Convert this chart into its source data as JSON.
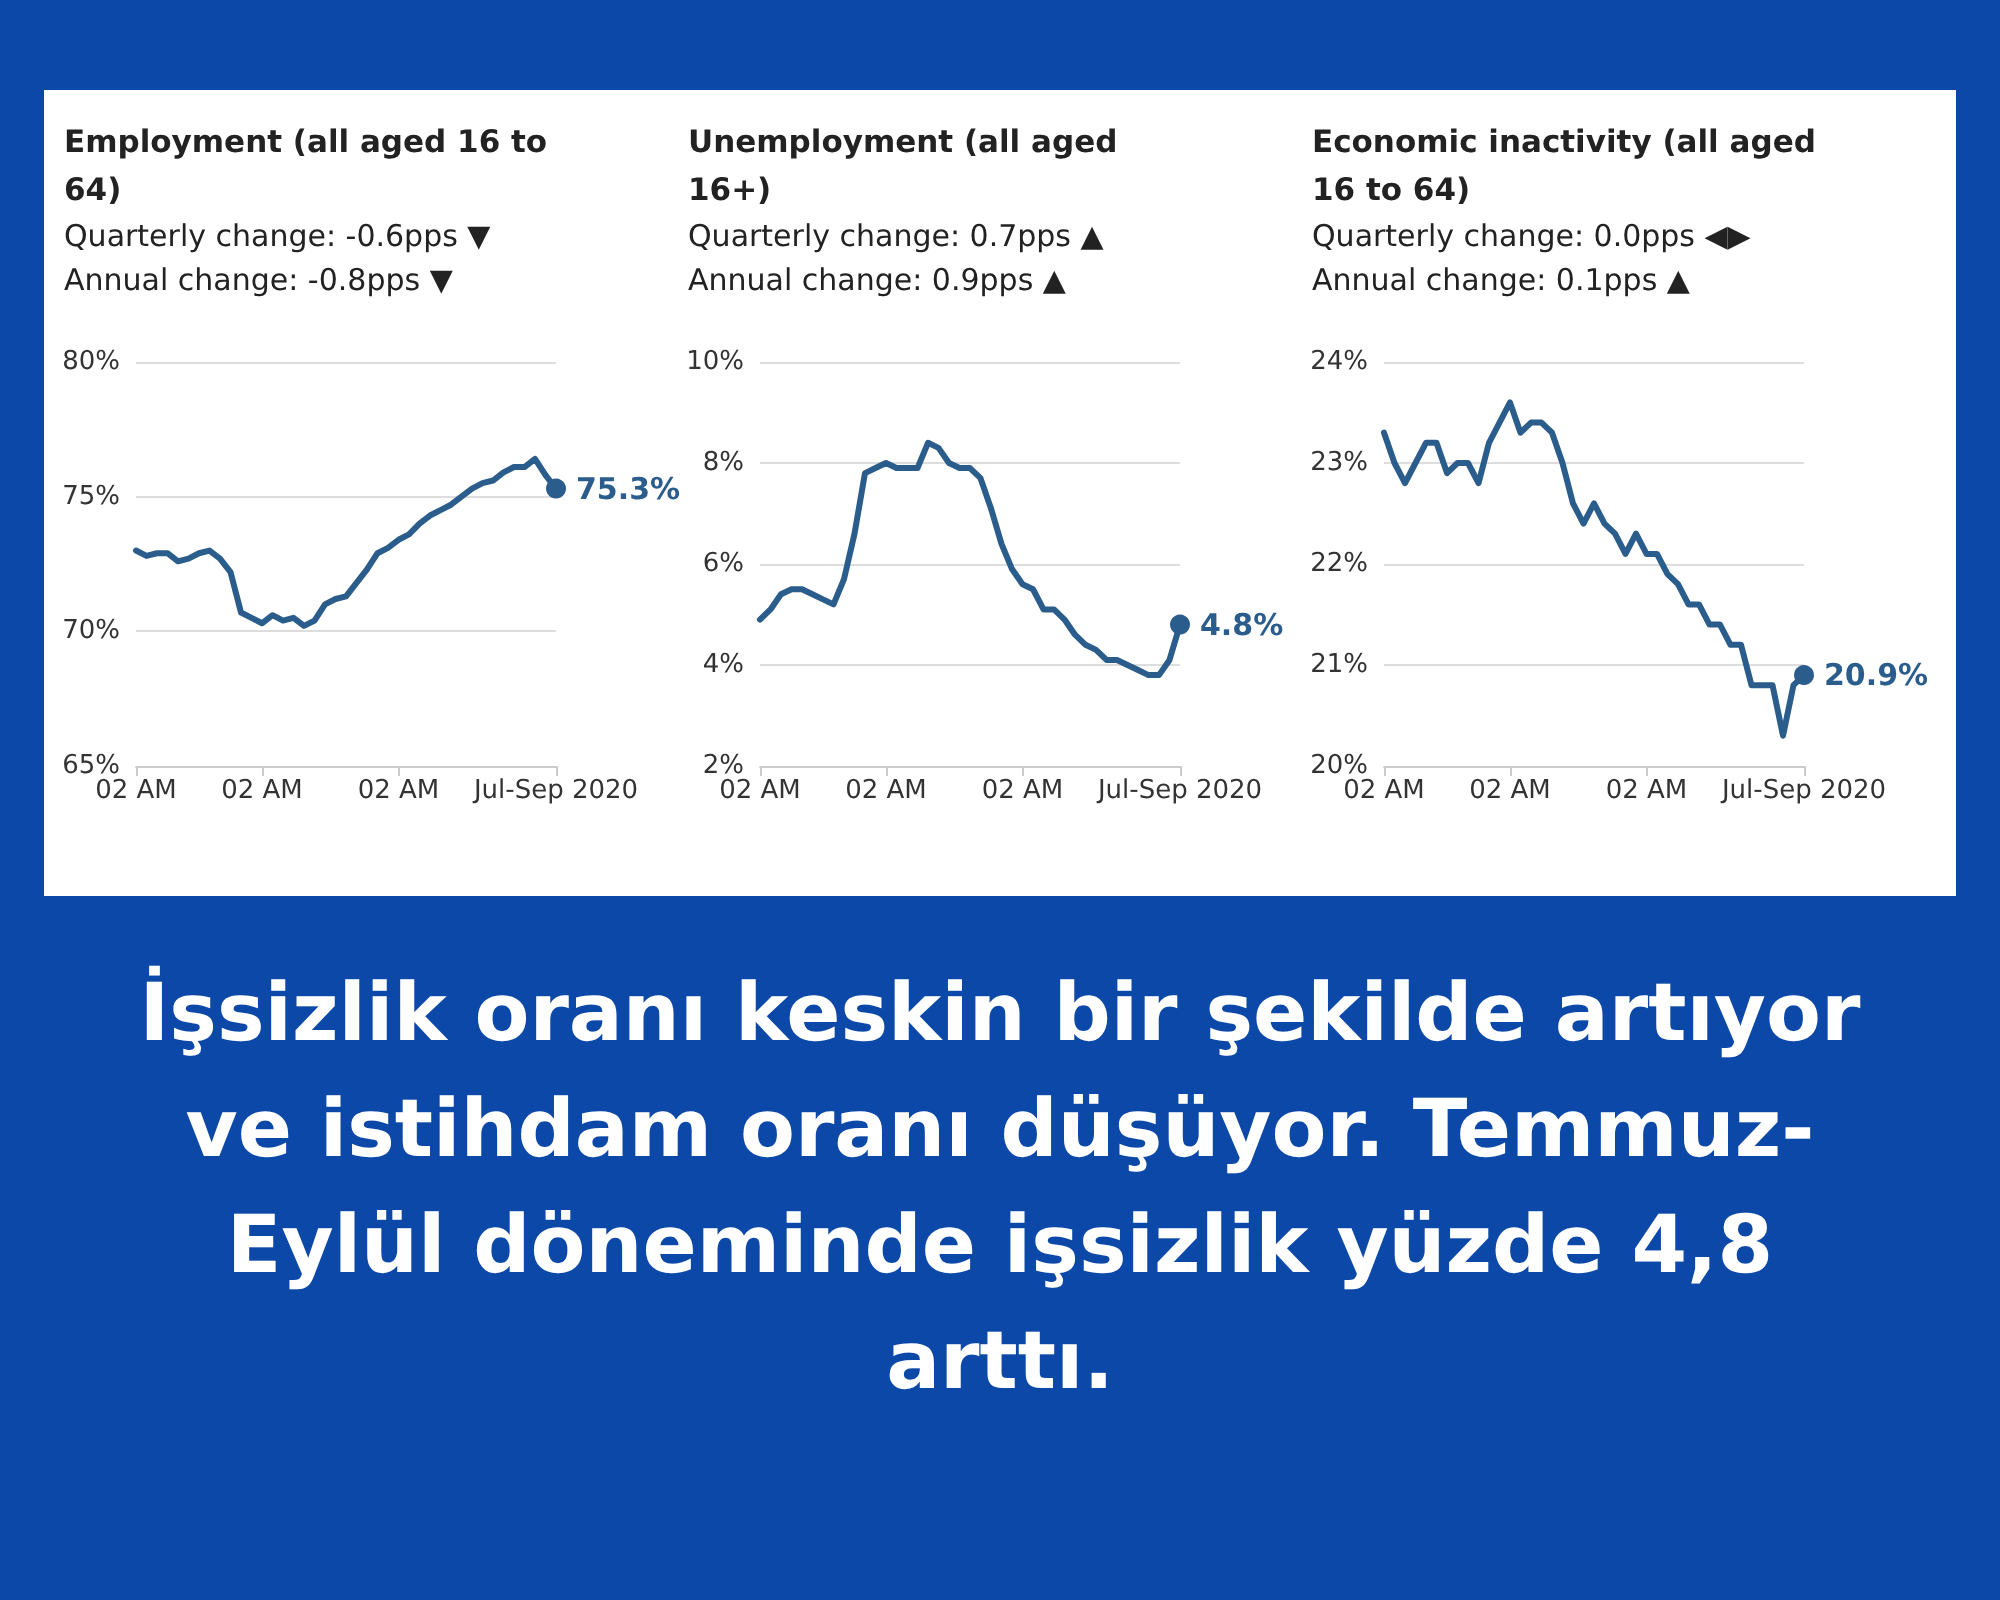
{
  "chart_data": [
    {
      "type": "line",
      "title": "Employment (all aged 16 to 64)",
      "annotations": [
        "Quarterly change: -0.6pps ▼",
        "Annual change: -0.8pps ▼"
      ],
      "categories": [
        "02 AM",
        null,
        null,
        null,
        null,
        null,
        null,
        null,
        null,
        null,
        null,
        null,
        "02 AM",
        null,
        null,
        null,
        null,
        null,
        null,
        null,
        null,
        null,
        null,
        null,
        null,
        "02 AM",
        null,
        null,
        null,
        null,
        null,
        null,
        null,
        null,
        null,
        null,
        null,
        null,
        null,
        null,
        "Jul-Sep 2020"
      ],
      "ylim": [
        65,
        80
      ],
      "yticks": [
        {
          "value": 65,
          "label": "65%"
        },
        {
          "value": 70,
          "label": "70%"
        },
        {
          "value": 75,
          "label": "75%"
        },
        {
          "value": 80,
          "label": "80%"
        }
      ],
      "grid": "y",
      "series": [
        {
          "color": "#2b5d8c",
          "values": [
            73.0,
            72.8,
            72.9,
            72.9,
            72.6,
            72.7,
            72.9,
            73.0,
            72.7,
            72.2,
            70.7,
            70.5,
            70.3,
            70.6,
            70.4,
            70.5,
            70.2,
            70.4,
            71.0,
            71.2,
            71.3,
            71.8,
            72.3,
            72.9,
            73.1,
            73.4,
            73.6,
            74.0,
            74.3,
            74.5,
            74.7,
            75.0,
            75.3,
            75.5,
            75.6,
            75.9,
            76.1,
            76.1,
            76.4,
            75.8,
            75.3
          ],
          "value_labels": [
            null,
            null,
            null,
            null,
            null,
            null,
            null,
            null,
            null,
            null,
            null,
            null,
            null,
            null,
            null,
            null,
            null,
            null,
            null,
            null,
            null,
            null,
            null,
            null,
            null,
            null,
            null,
            null,
            null,
            null,
            null,
            null,
            null,
            null,
            null,
            null,
            null,
            null,
            null,
            null,
            "75.3%"
          ]
        }
      ]
    },
    {
      "type": "line",
      "title": "Unemployment (all aged 16+)",
      "annotations": [
        "Quarterly change: 0.7pps ▲",
        "Annual change: 0.9pps ▲"
      ],
      "categories": [
        "02 AM",
        null,
        null,
        null,
        null,
        null,
        null,
        null,
        null,
        null,
        null,
        null,
        "02 AM",
        null,
        null,
        null,
        null,
        null,
        null,
        null,
        null,
        null,
        null,
        null,
        null,
        "02 AM",
        null,
        null,
        null,
        null,
        null,
        null,
        null,
        null,
        null,
        null,
        null,
        null,
        null,
        null,
        "Jul-Sep 2020"
      ],
      "ylim": [
        2,
        10
      ],
      "yticks": [
        {
          "value": 2,
          "label": "2%"
        },
        {
          "value": 4,
          "label": "4%"
        },
        {
          "value": 6,
          "label": "6%"
        },
        {
          "value": 8,
          "label": "8%"
        },
        {
          "value": 10,
          "label": "10%"
        }
      ],
      "grid": "y",
      "series": [
        {
          "color": "#2b5d8c",
          "values": [
            4.9,
            5.1,
            5.4,
            5.5,
            5.5,
            5.4,
            5.3,
            5.2,
            5.7,
            6.6,
            7.8,
            7.9,
            8.0,
            7.9,
            7.9,
            7.9,
            8.4,
            8.3,
            8.0,
            7.9,
            7.9,
            7.7,
            7.1,
            6.4,
            5.9,
            5.6,
            5.5,
            5.1,
            5.1,
            4.9,
            4.6,
            4.4,
            4.3,
            4.1,
            4.1,
            4.0,
            3.9,
            3.8,
            3.8,
            4.1,
            4.8
          ],
          "value_labels": [
            null,
            null,
            null,
            null,
            null,
            null,
            null,
            null,
            null,
            null,
            null,
            null,
            null,
            null,
            null,
            null,
            null,
            null,
            null,
            null,
            null,
            null,
            null,
            null,
            null,
            null,
            null,
            null,
            null,
            null,
            null,
            null,
            null,
            null,
            null,
            null,
            null,
            null,
            null,
            null,
            "4.8%"
          ]
        }
      ]
    },
    {
      "type": "line",
      "title": "Economic inactivity (all aged 16 to 64)",
      "annotations": [
        "Quarterly change: 0.0pps ◀▶",
        "Annual change: 0.1pps ▲"
      ],
      "categories": [
        "02 AM",
        null,
        null,
        null,
        null,
        null,
        null,
        null,
        null,
        null,
        null,
        null,
        "02 AM",
        null,
        null,
        null,
        null,
        null,
        null,
        null,
        null,
        null,
        null,
        null,
        null,
        "02 AM",
        null,
        null,
        null,
        null,
        null,
        null,
        null,
        null,
        null,
        null,
        null,
        null,
        null,
        null,
        "Jul-Sep 2020"
      ],
      "ylim": [
        20,
        24
      ],
      "yticks": [
        {
          "value": 20,
          "label": "20%"
        },
        {
          "value": 21,
          "label": "21%"
        },
        {
          "value": 22,
          "label": "22%"
        },
        {
          "value": 23,
          "label": "23%"
        },
        {
          "value": 24,
          "label": "24%"
        }
      ],
      "grid": "y",
      "series": [
        {
          "color": "#2b5d8c",
          "values": [
            23.3,
            23.0,
            22.8,
            23.0,
            23.2,
            23.2,
            22.9,
            23.0,
            23.0,
            22.8,
            23.2,
            23.4,
            23.6,
            23.3,
            23.4,
            23.4,
            23.3,
            23.0,
            22.6,
            22.4,
            22.6,
            22.4,
            22.3,
            22.1,
            22.3,
            22.1,
            22.1,
            21.9,
            21.8,
            21.6,
            21.6,
            21.4,
            21.4,
            21.2,
            21.2,
            20.8,
            20.8,
            20.8,
            20.3,
            20.8,
            20.9
          ],
          "value_labels": [
            null,
            null,
            null,
            null,
            null,
            null,
            null,
            null,
            null,
            null,
            null,
            null,
            null,
            null,
            null,
            null,
            null,
            null,
            null,
            null,
            null,
            null,
            null,
            null,
            null,
            null,
            null,
            null,
            null,
            null,
            null,
            null,
            null,
            null,
            null,
            null,
            null,
            null,
            null,
            null,
            "20.9%"
          ]
        }
      ]
    },
    {
      "type": "other",
      "title": "İşsizlik oranı keskin bir şekilde artıyor ve istihdam oranı düşüyor. Temmuz-Eylül döneminde işsizlik yüzde 4,8 arttı."
    }
  ]
}
